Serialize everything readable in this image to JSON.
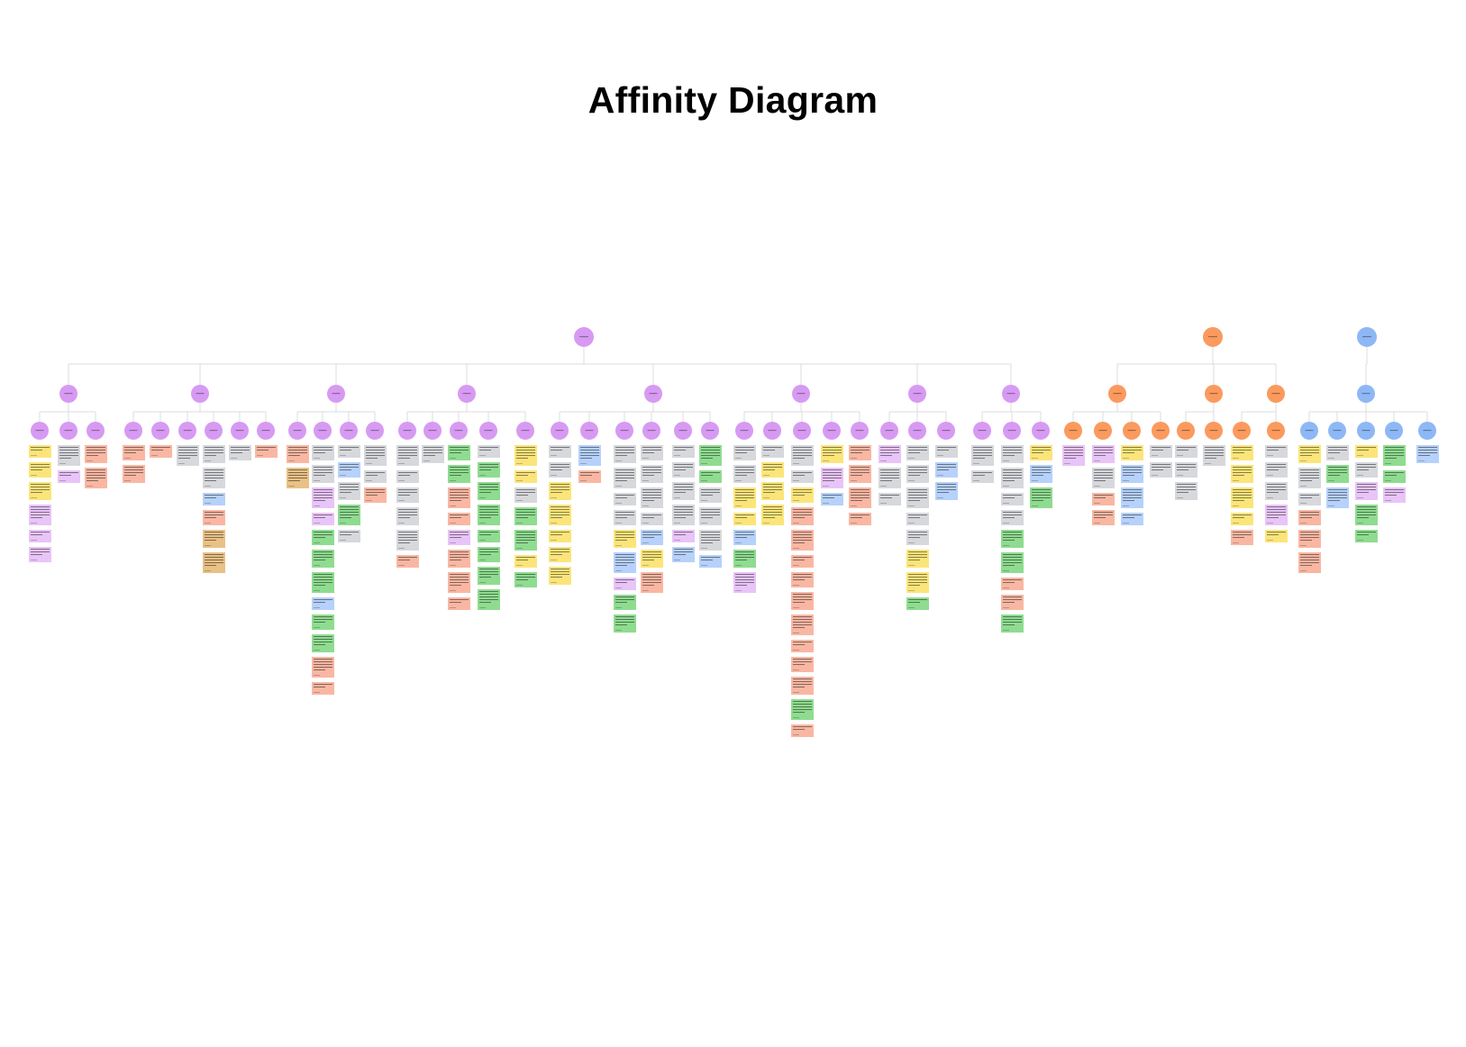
{
  "title": "Affinity Diagram",
  "colors": {
    "purple": "#d79af2",
    "orange": "#fb9a5e",
    "blue": "#8db8f5",
    "yellow": "#fbe57a",
    "grey": "#d6d8dc",
    "green": "#8fdc90",
    "salmon": "#f9b7a3",
    "lavender": "#e8c4f8",
    "sky": "#b6d1fb",
    "tan": "#e9c186",
    "line": "#dcdcdc"
  },
  "trees": [
    {
      "color": "purple",
      "groups": [
        {
          "leaves": [
            [
              "yellow",
              "yellow",
              "yellow",
              "lavender",
              "lavender",
              "lavender"
            ],
            [
              "grey",
              "lavender"
            ],
            [
              "salmon",
              "salmon"
            ]
          ]
        },
        {
          "leaves": [
            [
              "salmon",
              "salmon"
            ],
            [
              "salmon"
            ],
            [
              "grey"
            ],
            [
              "grey",
              "grey",
              "sky",
              "salmon",
              "tan",
              "tan"
            ],
            [
              "grey"
            ],
            [
              "salmon"
            ]
          ]
        },
        {
          "leaves": [
            [
              "salmon",
              "tan"
            ],
            [
              "grey",
              "grey",
              "lavender",
              "lavender",
              "green",
              "green",
              "green",
              "sky",
              "green",
              "green",
              "salmon",
              "salmon"
            ],
            [
              "grey",
              "sky",
              "grey",
              "green",
              "grey"
            ],
            [
              "grey",
              "grey",
              "salmon"
            ]
          ]
        },
        {
          "leaves": [
            [
              "grey",
              "grey",
              "grey",
              "grey",
              "grey",
              "salmon"
            ],
            [
              "grey"
            ],
            [
              "green",
              "green",
              "salmon",
              "salmon",
              "lavender",
              "salmon",
              "salmon",
              "salmon"
            ],
            [
              "grey",
              "green",
              "green",
              "green",
              "green",
              "green",
              "green",
              "green"
            ],
            [
              "yellow",
              "yellow",
              "grey",
              "green",
              "green",
              "yellow",
              "green"
            ]
          ]
        },
        {
          "leaves": [
            [
              "grey",
              "grey",
              "yellow",
              "yellow",
              "yellow",
              "yellow",
              "yellow"
            ],
            [
              "sky",
              "salmon"
            ],
            [
              "grey",
              "grey",
              "grey",
              "grey",
              "yellow",
              "sky",
              "lavender",
              "green",
              "green"
            ],
            [
              "grey",
              "grey",
              "grey",
              "grey",
              "sky",
              "yellow",
              "salmon"
            ],
            [
              "grey",
              "grey",
              "grey",
              "grey",
              "lavender",
              "sky"
            ],
            [
              "green",
              "green",
              "grey",
              "grey",
              "grey",
              "sky"
            ]
          ]
        },
        {
          "leaves": [
            [
              "grey",
              "grey",
              "yellow",
              "yellow",
              "sky",
              "green",
              "lavender"
            ],
            [
              "grey",
              "yellow",
              "yellow",
              "yellow"
            ],
            [
              "grey",
              "grey",
              "yellow",
              "salmon",
              "salmon",
              "salmon",
              "salmon",
              "salmon",
              "salmon",
              "salmon",
              "salmon",
              "salmon",
              "green",
              "salmon"
            ],
            [
              "yellow",
              "lavender",
              "sky"
            ],
            [
              "salmon",
              "salmon",
              "salmon",
              "salmon"
            ]
          ]
        },
        {
          "leaves": [
            [
              "lavender",
              "grey",
              "grey"
            ],
            [
              "grey",
              "grey",
              "grey",
              "grey",
              "grey",
              "yellow",
              "yellow",
              "green"
            ],
            [
              "grey",
              "sky",
              "sky"
            ]
          ]
        },
        {
          "leaves": [
            [
              "grey",
              "grey"
            ],
            [
              "grey",
              "grey",
              "grey",
              "grey",
              "green",
              "green",
              "salmon",
              "salmon",
              "green"
            ],
            [
              "yellow",
              "sky",
              "green"
            ]
          ]
        }
      ]
    },
    {
      "color": "orange",
      "groups": [
        {
          "leaves": [
            [
              "lavender"
            ],
            [
              "lavender",
              "grey",
              "salmon",
              "salmon"
            ],
            [
              "yellow",
              "sky",
              "sky",
              "sky"
            ],
            [
              "grey",
              "grey"
            ]
          ]
        },
        {
          "leaves": [
            [
              "grey",
              "grey",
              "grey"
            ],
            [
              "grey"
            ]
          ]
        },
        {
          "leaves": [
            [
              "yellow",
              "yellow",
              "yellow",
              "yellow",
              "salmon"
            ],
            [
              "grey",
              "grey",
              "grey",
              "lavender",
              "yellow"
            ]
          ]
        }
      ]
    },
    {
      "color": "blue",
      "groups": [
        {
          "leaves": [
            [
              "yellow",
              "grey",
              "grey",
              "salmon",
              "salmon",
              "salmon"
            ],
            [
              "grey",
              "green",
              "sky"
            ],
            [
              "yellow",
              "grey",
              "lavender",
              "green",
              "green"
            ],
            [
              "green",
              "green",
              "lavender"
            ],
            [
              "sky"
            ]
          ]
        }
      ]
    }
  ]
}
